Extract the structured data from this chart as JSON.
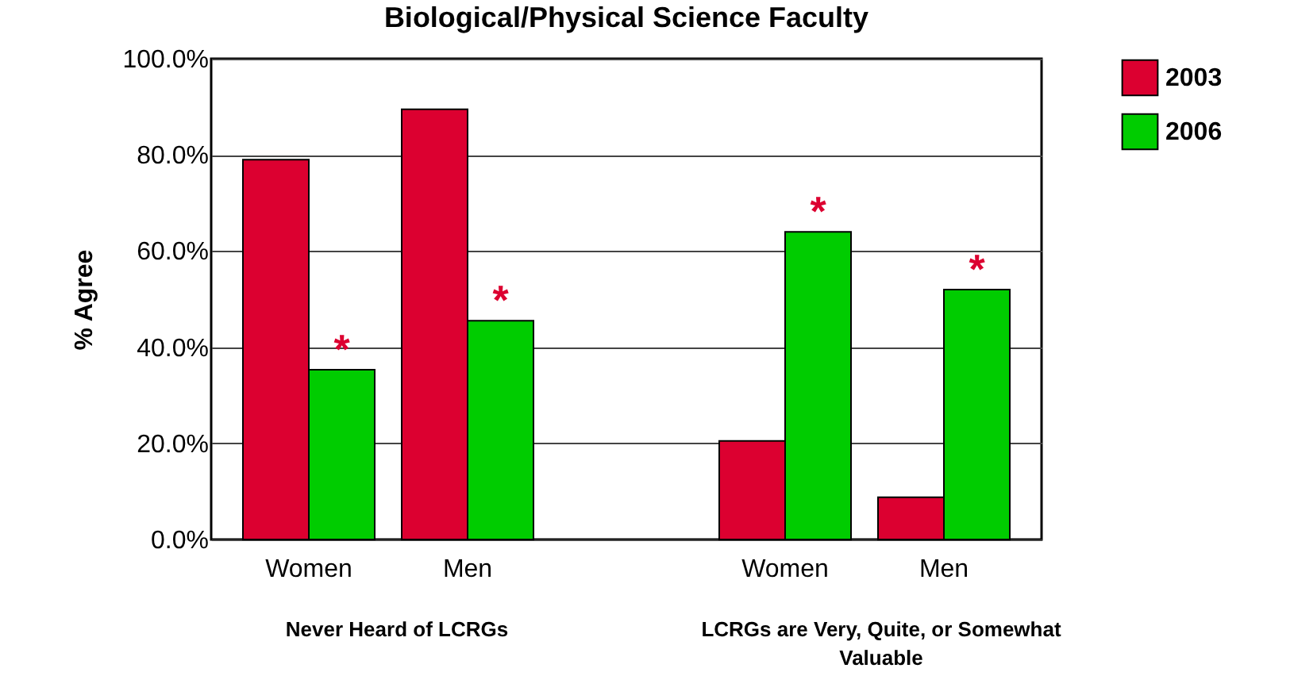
{
  "chart_data": {
    "type": "bar",
    "title": "Biological/Physical Science Faculty",
    "ylabel": "% Agree",
    "categories": [
      "Women",
      "Men",
      null,
      "Women",
      "Men"
    ],
    "series": [
      {
        "name": "2003",
        "color": "#dc0030",
        "values": [
          79,
          89.5,
          null,
          20.5,
          8.8
        ]
      },
      {
        "name": "2006",
        "color": "#00cc00",
        "values": [
          35.3,
          45.5,
          null,
          64,
          52
        ],
        "value_labels": [
          "*",
          "*",
          null,
          "*",
          "*"
        ]
      }
    ],
    "ylim": [
      0,
      100
    ],
    "yticks": [
      {
        "value": 0,
        "label": "0.0%"
      },
      {
        "value": 20,
        "label": "20.0%"
      },
      {
        "value": 40,
        "label": "40.0%"
      },
      {
        "value": 60,
        "label": "60.0%"
      },
      {
        "value": 80,
        "label": "80.0%"
      },
      {
        "value": 100,
        "label": "100.0%"
      }
    ],
    "grid": "y",
    "legend": "right",
    "annotations": [
      "Never Heard of LCRGs",
      "LCRGs are Very, Quite, or Somewhat Valuable"
    ]
  }
}
